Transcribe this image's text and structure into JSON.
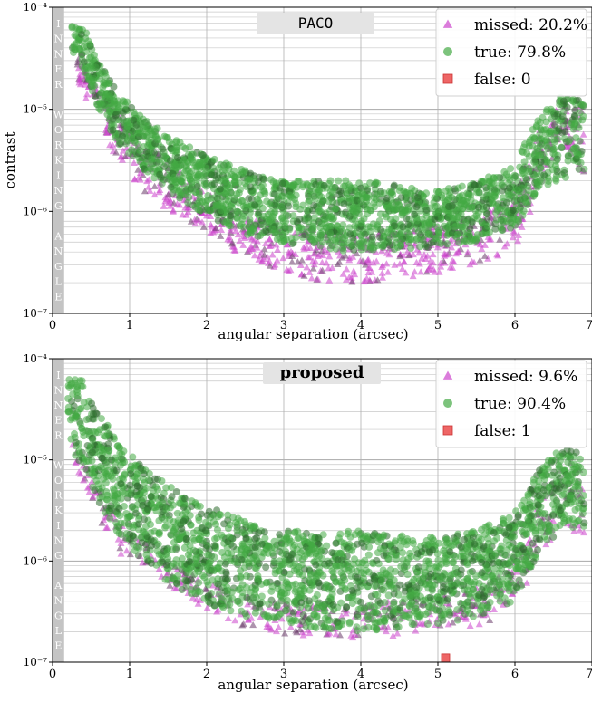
{
  "chart_data": [
    {
      "type": "scatter",
      "title": "PACO",
      "title_style": "monospace",
      "xlabel": "angular separation (arcsec)",
      "ylabel": "contrast",
      "xlim": [
        0,
        7
      ],
      "ylim": [
        1e-07,
        0.0001
      ],
      "yscale": "log",
      "grid": true,
      "legend_position": "top-right",
      "x_ticks": [
        "0",
        "1",
        "2",
        "3",
        "4",
        "5",
        "6",
        "7"
      ],
      "y_ticks": [
        "10⁻⁷",
        "10⁻⁶",
        "10⁻⁵",
        "10⁻⁴"
      ],
      "iwa": {
        "label": "INNER WORKING ANGLE",
        "x_max": 0.15
      },
      "legend": [
        {
          "marker": "triangle",
          "label": "missed: 20.2%"
        },
        {
          "marker": "circle",
          "label": "true: 79.8%"
        },
        {
          "marker": "square",
          "label": "false: 0"
        }
      ],
      "series": [
        {
          "name": "missed",
          "color": "#cc44cc",
          "marker": "triangle",
          "fraction": 0.202,
          "envelope_x": [
            0.3,
            0.5,
            0.75,
            1.0,
            1.5,
            2.0,
            2.5,
            3.0,
            3.5,
            4.0,
            4.5,
            5.0,
            5.5,
            6.0,
            6.3,
            6.6,
            6.9
          ],
          "envelope_top": [
            3.5e-05,
            2e-05,
            1.2e-05,
            6e-06,
            3.2e-06,
            1.5e-06,
            9e-07,
            7e-07,
            6.5e-07,
            6e-07,
            6.5e-07,
            7e-07,
            8.5e-07,
            1.5e-06,
            6e-06,
            1.2e-05,
            1.1e-05
          ],
          "envelope_bottom": [
            2e-05,
            1e-05,
            4e-06,
            2e-06,
            1e-06,
            6e-07,
            3.5e-07,
            2.5e-07,
            2e-07,
            2e-07,
            2.2e-07,
            2.5e-07,
            3e-07,
            4e-07,
            1.5e-06,
            5e-06,
            2e-06
          ]
        },
        {
          "name": "true",
          "color": "#44aa44",
          "marker": "circle",
          "fraction": 0.798,
          "envelope_x": [
            0.25,
            0.4,
            0.6,
            0.85,
            1.2,
            1.6,
            2.0,
            2.5,
            3.0,
            3.5,
            4.0,
            4.5,
            5.0,
            5.5,
            6.0,
            6.3,
            6.6,
            6.9
          ],
          "envelope_top": [
            6.5e-05,
            6.5e-05,
            3e-05,
            1.5e-05,
            8e-06,
            5e-06,
            3.5e-06,
            2.5e-06,
            2e-06,
            2e-06,
            2e-06,
            1.8e-06,
            1.6e-06,
            1.9e-06,
            3e-06,
            8e-06,
            1.4e-05,
            1.3e-05
          ],
          "envelope_bottom": [
            3.5e-05,
            2.5e-05,
            1e-05,
            4.5e-06,
            2.5e-06,
            1.4e-06,
            9e-07,
            6e-07,
            5e-07,
            4.2e-07,
            4e-07,
            4.2e-07,
            4.5e-07,
            5e-07,
            7e-07,
            1.5e-06,
            2e-06,
            2.5e-06
          ]
        },
        {
          "name": "false",
          "color": "#ee6666",
          "marker": "square",
          "points": []
        }
      ]
    },
    {
      "type": "scatter",
      "title": "proposed",
      "title_style": "bold",
      "xlabel": "angular separation (arcsec)",
      "ylabel": "",
      "xlim": [
        0,
        7
      ],
      "ylim": [
        1e-07,
        0.0001
      ],
      "yscale": "log",
      "grid": true,
      "legend_position": "top-right",
      "x_ticks": [
        "0",
        "1",
        "2",
        "3",
        "4",
        "5",
        "6",
        "7"
      ],
      "y_ticks": [
        "10⁻⁷",
        "10⁻⁶",
        "10⁻⁵",
        "10⁻⁴"
      ],
      "iwa": {
        "label": "INNER WORKING ANGLE",
        "x_max": 0.15
      },
      "legend": [
        {
          "marker": "triangle",
          "label": "missed: 9.6%"
        },
        {
          "marker": "circle",
          "label": "true: 90.4%"
        },
        {
          "marker": "square",
          "label": "false: 1"
        }
      ],
      "series": [
        {
          "name": "missed",
          "color": "#cc44cc",
          "marker": "triangle",
          "fraction": 0.096,
          "envelope_x": [
            0.25,
            0.5,
            0.75,
            1.0,
            1.5,
            2.0,
            2.5,
            3.0,
            3.5,
            4.0,
            4.5,
            5.0,
            5.5,
            6.0,
            6.3,
            6.6,
            6.9
          ],
          "envelope_top": [
            1.5e-05,
            7e-06,
            3.5e-06,
            2e-06,
            1e-06,
            6e-07,
            4.5e-07,
            4e-07,
            3.8e-07,
            3.8e-07,
            4e-07,
            4.5e-07,
            5.5e-07,
            1e-06,
            4e-06,
            1e-05,
            8e-06
          ],
          "envelope_bottom": [
            8e-06,
            3.5e-06,
            1.5e-06,
            9e-07,
            5e-07,
            3e-07,
            2.2e-07,
            1.9e-07,
            1.7e-07,
            1.7e-07,
            1.8e-07,
            2e-07,
            2.3e-07,
            3e-07,
            1e-06,
            2.5e-06,
            1.5e-06
          ]
        },
        {
          "name": "true",
          "color": "#44aa44",
          "marker": "circle",
          "fraction": 0.904,
          "envelope_x": [
            0.2,
            0.4,
            0.6,
            0.85,
            1.2,
            1.6,
            2.0,
            2.5,
            3.0,
            3.5,
            4.0,
            4.5,
            5.0,
            5.5,
            6.0,
            6.3,
            6.6,
            6.9
          ],
          "envelope_top": [
            6.5e-05,
            6.5e-05,
            3e-05,
            1.5e-05,
            8e-06,
            5e-06,
            3.5e-06,
            2.5e-06,
            2e-06,
            2e-06,
            2e-06,
            1.8e-06,
            1.7e-06,
            2e-06,
            3e-06,
            8e-06,
            1.3e-05,
            1.2e-05
          ],
          "envelope_bottom": [
            1.5e-05,
            8e-06,
            3.5e-06,
            1.8e-06,
            9e-07,
            5.5e-07,
            3.8e-07,
            2.8e-07,
            2.3e-07,
            2e-07,
            2e-07,
            2.2e-07,
            2.4e-07,
            2.8e-07,
            4e-07,
            1.2e-06,
            2e-06,
            2e-06
          ]
        },
        {
          "name": "false",
          "color": "#ee6666",
          "marker": "square",
          "points": [
            {
              "x": 5.1,
              "y": 1.1e-07
            }
          ]
        }
      ]
    }
  ]
}
